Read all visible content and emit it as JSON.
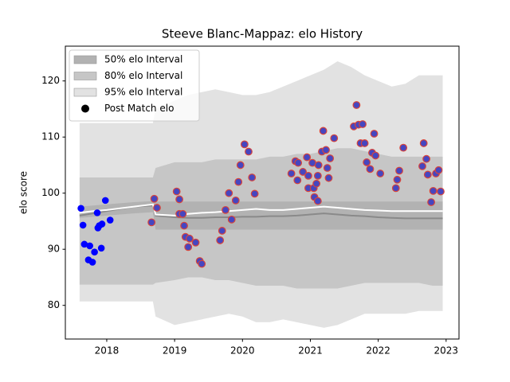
{
  "chart_data": {
    "type": "band",
    "title": "Steeve Blanc-Mappaz: elo History",
    "ylabel": "elo score",
    "xlim": [
      2017.39,
      2023.19
    ],
    "ylim": [
      74,
      126.2
    ],
    "xticks": [
      2018,
      2019,
      2020,
      2021,
      2022,
      2023
    ],
    "yticks": [
      80,
      90,
      100,
      110,
      120
    ],
    "legend": "upper left",
    "band_x": [
      2017.6,
      2017.8,
      2018.0,
      2018.2,
      2018.4,
      2018.68,
      2018.72,
      2019.0,
      2019.2,
      2019.4,
      2019.6,
      2019.8,
      2020.0,
      2020.2,
      2020.4,
      2020.6,
      2020.8,
      2021.0,
      2021.2,
      2021.4,
      2021.6,
      2021.8,
      2022.0,
      2022.2,
      2022.4,
      2022.6,
      2022.8,
      2022.95
    ],
    "bands": [
      {
        "name": "95% elo Interval",
        "color": "#e2e2e2",
        "upper": [
          112.5,
          112.5,
          112.5,
          112.5,
          112.5,
          112.5,
          115,
          116.5,
          117.5,
          118,
          118.5,
          118,
          117.5,
          117.5,
          118,
          119,
          120,
          121,
          122,
          123.5,
          122.5,
          121,
          120,
          119,
          119.5,
          121,
          121,
          121
        ],
        "lower": [
          80.7,
          80.7,
          80.7,
          80.7,
          80.7,
          80.7,
          78,
          76.5,
          77,
          77.5,
          78,
          78.5,
          78,
          77,
          77,
          77.5,
          77,
          76.5,
          76,
          76.5,
          77.5,
          78.5,
          78.5,
          78.5,
          78.5,
          79,
          79,
          79
        ]
      },
      {
        "name": "80% elo Interval",
        "color": "#c6c6c6",
        "upper": [
          102.8,
          102.8,
          102.8,
          102.8,
          102.8,
          102.8,
          104.5,
          105.5,
          105.5,
          105.5,
          106,
          106,
          106,
          106,
          106.5,
          106.5,
          107,
          107,
          107.5,
          108,
          108,
          107.5,
          107,
          106.5,
          106.5,
          106.5,
          106.5,
          106.5
        ],
        "lower": [
          83.7,
          83.7,
          83.7,
          83.7,
          83.7,
          83.7,
          84,
          84.5,
          85,
          85,
          84.5,
          84.5,
          84,
          83.5,
          83.5,
          83.5,
          83,
          83,
          83,
          83,
          83.5,
          84,
          84,
          84,
          84,
          84,
          83.5,
          83.5
        ]
      },
      {
        "name": "50% elo Interval",
        "color": "#b2b2b2",
        "upper": [
          97.6,
          97.8,
          98,
          98.2,
          98.4,
          98.6,
          98.5,
          98.5,
          98.5,
          98.5,
          98.5,
          98.5,
          98.5,
          98.5,
          98.5,
          98.5,
          98.5,
          98.5,
          98.5,
          98.5,
          98.5,
          98.5,
          98.5,
          98.5,
          98.5,
          98.5,
          98.5,
          98.5
        ],
        "lower": [
          95.6,
          95.8,
          96,
          96.2,
          96.4,
          96.6,
          93.5,
          93.5,
          93.5,
          93.5,
          93.5,
          93.5,
          93.5,
          93.5,
          93.5,
          93.5,
          93.5,
          93.5,
          93.5,
          93.5,
          93.5,
          93.5,
          93.5,
          93.5,
          93.5,
          93.5,
          93.5,
          93.5
        ]
      }
    ],
    "lines": [
      {
        "color": "#8a8a8a",
        "values": [
          96,
          96.4,
          96.8,
          97.2,
          97.6,
          97.8,
          96,
          95.7,
          95.6,
          95.6,
          95.7,
          95.7,
          95.8,
          95.8,
          95.9,
          95.9,
          96,
          96.2,
          96.4,
          96.2,
          96,
          95.9,
          95.7,
          95.6,
          95.5,
          95.5,
          95.5,
          95.5
        ]
      },
      {
        "color": "#ffffff",
        "values": [
          96.5,
          96.8,
          97,
          97.3,
          97.6,
          98,
          96.2,
          96,
          96.3,
          96.5,
          96.6,
          96.8,
          97,
          97.2,
          97,
          97,
          97.2,
          97.4,
          97.6,
          97.4,
          97.2,
          97,
          96.9,
          96.8,
          96.8,
          96.8,
          96.8,
          96.8
        ]
      }
    ],
    "scatter": {
      "name": "Post Match elo",
      "legend_color": "#000000",
      "groups": [
        {
          "color": "#0000ff",
          "x": [
            2017.62,
            2017.65,
            2017.67,
            2017.73,
            2017.75,
            2017.79,
            2017.82,
            2017.86,
            2017.87,
            2017.89,
            2017.92,
            2017.93,
            2017.98,
            2018.05
          ],
          "values": [
            97.3,
            94.3,
            90.9,
            88.1,
            90.6,
            87.7,
            89.5,
            96.5,
            93.8,
            94.2,
            90.2,
            94.5,
            98.7,
            95.2
          ]
        },
        {
          "color": "#4646c0",
          "edgecolor": "#d9443a",
          "x": [
            2018.66,
            2018.7,
            2018.74,
            2019.03,
            2019.07,
            2019.07,
            2019.12,
            2019.14,
            2019.16,
            2019.2,
            2019.22,
            2019.31,
            2019.37,
            2019.4,
            2019.67,
            2019.7,
            2019.75,
            2019.8,
            2019.84,
            2019.9,
            2019.94,
            2019.97,
            2020.03,
            2020.09,
            2020.14,
            2020.18,
            2020.72,
            2020.78,
            2020.82,
            2020.81,
            2020.89,
            2020.95,
            2020.97,
            2020.97,
            2021.03,
            2021.05,
            2021.06,
            2021.09,
            2021.11,
            2021.12,
            2021.11,
            2021.17,
            2021.19,
            2021.23,
            2021.25,
            2021.27,
            2021.29,
            2021.35,
            2021.64,
            2021.68,
            2021.71,
            2021.74,
            2021.77,
            2021.8,
            2021.83,
            2021.88,
            2021.91,
            2021.94,
            2021.96,
            2022.03,
            2022.26,
            2022.28,
            2022.31,
            2022.37,
            2022.65,
            2022.67,
            2022.71,
            2022.73,
            2022.78,
            2022.81,
            2022.85,
            2022.89,
            2022.92
          ],
          "values": [
            94.8,
            99.0,
            97.4,
            100.3,
            98.9,
            96.3,
            96.3,
            94.2,
            92.2,
            90.4,
            91.9,
            91.2,
            87.9,
            87.4,
            91.6,
            93.3,
            97.0,
            100.0,
            95.3,
            98.7,
            102.0,
            105.0,
            108.7,
            107.4,
            102.8,
            99.9,
            103.5,
            105.7,
            105.4,
            102.3,
            103.8,
            106.4,
            103.1,
            100.9,
            105.4,
            100.9,
            99.3,
            101.7,
            103.1,
            105.0,
            98.6,
            107.4,
            111.1,
            107.7,
            104.5,
            102.7,
            106.2,
            109.8,
            111.9,
            115.7,
            112.2,
            108.9,
            112.3,
            108.9,
            105.5,
            104.3,
            107.2,
            110.6,
            106.7,
            103.5,
            100.9,
            102.4,
            104.0,
            108.1,
            104.8,
            108.9,
            106.1,
            103.3,
            98.4,
            100.4,
            103.5,
            104.1,
            100.3
          ]
        }
      ]
    }
  }
}
